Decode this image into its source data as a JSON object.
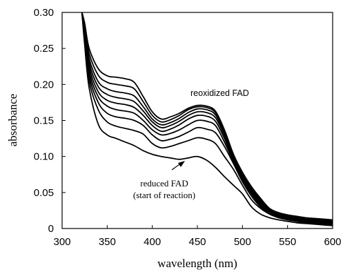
{
  "chart_data": {
    "type": "line",
    "title": "",
    "xlabel": "wavelength (nm)",
    "ylabel": "absorbance",
    "xlim": [
      300,
      600
    ],
    "ylim": [
      0,
      0.3
    ],
    "xticks": [
      "300",
      "350",
      "400",
      "450",
      "500",
      "550",
      "600"
    ],
    "yticks": [
      "0",
      "0.05",
      "0.10",
      "0.15",
      "0.20",
      "0.25",
      "0.30"
    ],
    "grid": false,
    "legend": "none",
    "annotations": {
      "top": "reoxidized FAD",
      "bottom_line1": "reduced FAD",
      "bottom_line2": "(start of reaction)"
    },
    "series": [
      {
        "x": [
          322,
          325,
          330,
          340,
          350,
          360,
          370,
          380,
          390,
          400,
          410,
          420,
          430,
          440,
          450,
          460,
          470,
          480,
          490,
          500,
          510,
          520,
          530,
          540,
          550,
          560,
          570,
          580,
          590,
          600
        ],
        "values": [
          0.3,
          0.255,
          0.195,
          0.145,
          0.13,
          0.125,
          0.12,
          0.115,
          0.108,
          0.103,
          0.1,
          0.098,
          0.096,
          0.098,
          0.1,
          0.095,
          0.085,
          0.072,
          0.06,
          0.048,
          0.03,
          0.02,
          0.015,
          0.012,
          0.01,
          0.008,
          0.007,
          0.006,
          0.005,
          0.004
        ]
      },
      {
        "x": [
          322,
          325,
          330,
          340,
          350,
          360,
          370,
          380,
          390,
          400,
          410,
          420,
          430,
          440,
          450,
          460,
          470,
          480,
          490,
          500,
          510,
          520,
          530,
          540,
          550,
          560,
          570,
          580,
          590,
          600
        ],
        "values": [
          0.3,
          0.262,
          0.205,
          0.165,
          0.148,
          0.142,
          0.139,
          0.136,
          0.131,
          0.118,
          0.112,
          0.114,
          0.118,
          0.122,
          0.126,
          0.124,
          0.118,
          0.1,
          0.082,
          0.06,
          0.04,
          0.028,
          0.02,
          0.015,
          0.012,
          0.01,
          0.008,
          0.007,
          0.006,
          0.005
        ]
      },
      {
        "x": [
          322,
          325,
          330,
          340,
          350,
          360,
          370,
          380,
          390,
          400,
          410,
          420,
          430,
          440,
          450,
          460,
          470,
          480,
          490,
          500,
          510,
          520,
          530,
          540,
          550,
          560,
          570,
          580,
          590,
          600
        ],
        "values": [
          0.3,
          0.266,
          0.212,
          0.175,
          0.16,
          0.155,
          0.153,
          0.15,
          0.143,
          0.13,
          0.122,
          0.124,
          0.128,
          0.134,
          0.14,
          0.138,
          0.133,
          0.114,
          0.09,
          0.065,
          0.045,
          0.03,
          0.02,
          0.016,
          0.013,
          0.011,
          0.009,
          0.008,
          0.007,
          0.006
        ]
      },
      {
        "x": [
          322,
          325,
          330,
          340,
          350,
          360,
          370,
          380,
          390,
          400,
          410,
          420,
          430,
          440,
          450,
          460,
          470,
          480,
          490,
          500,
          510,
          520,
          530,
          540,
          550,
          560,
          570,
          580,
          590,
          600
        ],
        "values": [
          0.3,
          0.27,
          0.218,
          0.183,
          0.17,
          0.165,
          0.163,
          0.16,
          0.15,
          0.137,
          0.13,
          0.132,
          0.137,
          0.144,
          0.15,
          0.149,
          0.143,
          0.12,
          0.093,
          0.068,
          0.048,
          0.032,
          0.022,
          0.017,
          0.014,
          0.012,
          0.01,
          0.009,
          0.008,
          0.007
        ]
      },
      {
        "x": [
          322,
          325,
          330,
          340,
          350,
          360,
          370,
          380,
          390,
          400,
          410,
          420,
          430,
          440,
          450,
          460,
          470,
          480,
          490,
          500,
          510,
          520,
          530,
          540,
          550,
          560,
          570,
          580,
          590,
          600
        ],
        "values": [
          0.3,
          0.273,
          0.224,
          0.19,
          0.178,
          0.174,
          0.172,
          0.168,
          0.157,
          0.143,
          0.135,
          0.138,
          0.144,
          0.152,
          0.157,
          0.156,
          0.149,
          0.125,
          0.095,
          0.07,
          0.05,
          0.034,
          0.024,
          0.018,
          0.015,
          0.013,
          0.011,
          0.01,
          0.009,
          0.008
        ]
      },
      {
        "x": [
          322,
          325,
          330,
          340,
          350,
          360,
          370,
          380,
          390,
          400,
          410,
          420,
          430,
          440,
          450,
          460,
          470,
          480,
          490,
          500,
          510,
          520,
          530,
          540,
          550,
          560,
          570,
          580,
          590,
          600
        ],
        "values": [
          0.3,
          0.276,
          0.23,
          0.197,
          0.186,
          0.182,
          0.18,
          0.176,
          0.163,
          0.148,
          0.14,
          0.143,
          0.149,
          0.157,
          0.162,
          0.161,
          0.154,
          0.129,
          0.097,
          0.072,
          0.052,
          0.036,
          0.025,
          0.019,
          0.016,
          0.014,
          0.012,
          0.011,
          0.01,
          0.009
        ]
      },
      {
        "x": [
          322,
          325,
          330,
          340,
          350,
          360,
          370,
          380,
          390,
          400,
          410,
          420,
          430,
          440,
          450,
          460,
          470,
          480,
          490,
          500,
          510,
          520,
          530,
          540,
          550,
          560,
          570,
          580,
          590,
          600
        ],
        "values": [
          0.3,
          0.279,
          0.236,
          0.204,
          0.194,
          0.19,
          0.188,
          0.184,
          0.169,
          0.152,
          0.144,
          0.147,
          0.153,
          0.161,
          0.166,
          0.165,
          0.158,
          0.132,
          0.099,
          0.074,
          0.054,
          0.038,
          0.026,
          0.02,
          0.017,
          0.015,
          0.013,
          0.012,
          0.011,
          0.01
        ]
      },
      {
        "x": [
          322,
          325,
          330,
          340,
          350,
          360,
          370,
          380,
          390,
          400,
          410,
          420,
          430,
          440,
          450,
          460,
          470,
          480,
          490,
          500,
          510,
          520,
          530,
          540,
          550,
          560,
          570,
          580,
          590,
          600
        ],
        "values": [
          0.3,
          0.282,
          0.243,
          0.213,
          0.203,
          0.2,
          0.198,
          0.194,
          0.176,
          0.157,
          0.148,
          0.151,
          0.157,
          0.165,
          0.169,
          0.168,
          0.161,
          0.135,
          0.101,
          0.076,
          0.056,
          0.04,
          0.027,
          0.021,
          0.018,
          0.016,
          0.014,
          0.013,
          0.012,
          0.011
        ]
      },
      {
        "x": [
          322,
          325,
          330,
          340,
          350,
          360,
          370,
          380,
          390,
          400,
          410,
          420,
          430,
          440,
          450,
          460,
          470,
          480,
          490,
          500,
          510,
          520,
          530,
          540,
          550,
          560,
          570,
          580,
          590,
          600
        ],
        "values": [
          0.3,
          0.285,
          0.25,
          0.222,
          0.212,
          0.21,
          0.208,
          0.203,
          0.183,
          0.162,
          0.152,
          0.155,
          0.16,
          0.167,
          0.171,
          0.17,
          0.163,
          0.137,
          0.103,
          0.078,
          0.058,
          0.042,
          0.028,
          0.022,
          0.019,
          0.017,
          0.015,
          0.014,
          0.013,
          0.012
        ]
      }
    ]
  }
}
